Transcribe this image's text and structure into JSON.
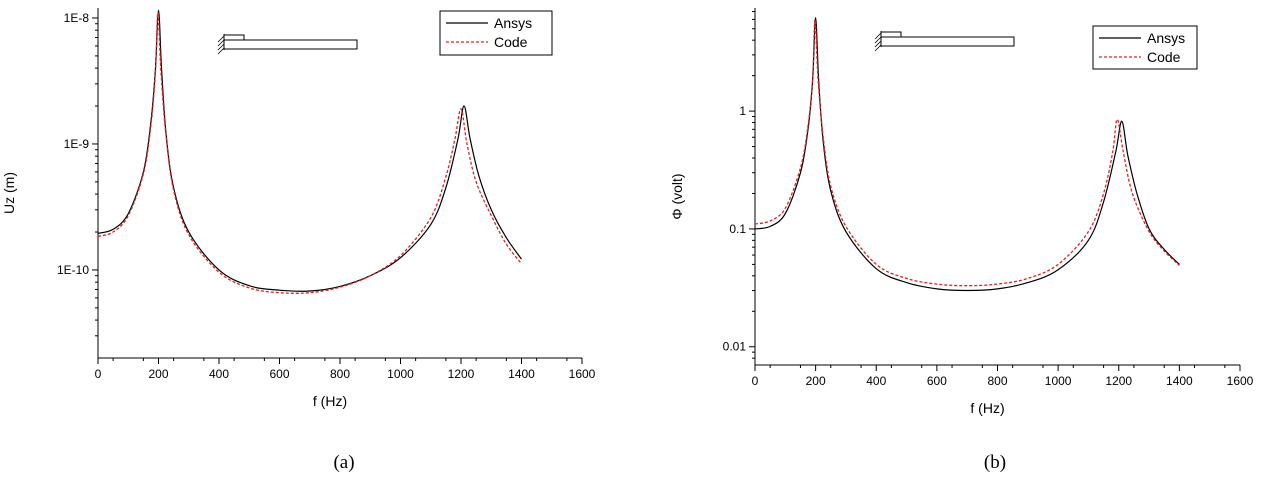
{
  "figure": {
    "caption_a": "(a)",
    "caption_b": "(b)"
  },
  "chart_data": [
    {
      "type": "line",
      "log_y": true,
      "xlabel": "f (Hz)",
      "ylabel": "Uz (m)",
      "xlim": [
        0,
        1600
      ],
      "ylim": [
        2e-11,
        1.2e-08
      ],
      "x_ticks": [
        0,
        200,
        400,
        600,
        800,
        1000,
        1200,
        1400,
        1600
      ],
      "x_tick_labels": [
        "0",
        "200",
        "400",
        "600",
        "800",
        "1000",
        "1200",
        "1400",
        "1600"
      ],
      "y_ticks": [
        1e-10,
        1e-09,
        1e-08
      ],
      "y_tick_labels": [
        "1E-10",
        "1E-9",
        "1E-8"
      ],
      "grid": false,
      "legend_position": "top-right",
      "inset": "cantilever-beam-sketch",
      "series": [
        {
          "name": "Ansys",
          "color": "#000000",
          "dash": "solid",
          "x": [
            0,
            50,
            100,
            150,
            175,
            190,
            200,
            210,
            225,
            250,
            300,
            400,
            500,
            600,
            700,
            800,
            900,
            1000,
            1100,
            1150,
            1190,
            1210,
            1230,
            1260,
            1300,
            1350,
            1400
          ],
          "y": [
            1.95e-10,
            2.1e-10,
            2.8e-10,
            6e-10,
            1.5e-09,
            4e-09,
            1.15e-08,
            4e-09,
            1.2e-09,
            4.5e-10,
            2e-10,
            1e-10,
            7.5e-11,
            6.9e-11,
            6.8e-11,
            7.4e-11,
            9e-11,
            1.25e-10,
            2.3e-10,
            4.5e-10,
            1.1e-09,
            2e-09,
            1.1e-09,
            5.5e-10,
            3e-10,
            1.8e-10,
            1.22e-10
          ]
        },
        {
          "name": "Code",
          "color": "#e02020",
          "dash": "dashed",
          "x": [
            0,
            50,
            100,
            150,
            175,
            190,
            198,
            208,
            225,
            250,
            300,
            400,
            500,
            600,
            700,
            800,
            900,
            1000,
            1100,
            1150,
            1180,
            1200,
            1220,
            1250,
            1300,
            1350,
            1400
          ],
          "y": [
            1.85e-10,
            2e-10,
            2.7e-10,
            5.8e-10,
            1.4e-09,
            3.8e-09,
            1.1e-08,
            3.8e-09,
            1.15e-09,
            4.3e-10,
            1.9e-10,
            9.6e-11,
            7.2e-11,
            6.6e-11,
            6.6e-11,
            7.3e-11,
            9e-11,
            1.3e-10,
            2.6e-10,
            5.5e-10,
            1.1e-09,
            1.9e-09,
            1e-09,
            5e-10,
            2.7e-10,
            1.6e-10,
            1.12e-10
          ]
        }
      ]
    },
    {
      "type": "line",
      "log_y": true,
      "xlabel": "f (Hz)",
      "ylabel": "Φ (volt)",
      "xlim": [
        0,
        1600
      ],
      "ylim": [
        0.007,
        7.5
      ],
      "x_ticks": [
        0,
        200,
        400,
        600,
        800,
        1000,
        1200,
        1400,
        1600
      ],
      "x_tick_labels": [
        "0",
        "200",
        "400",
        "600",
        "800",
        "1000",
        "1200",
        "1400",
        "1600"
      ],
      "y_ticks": [
        0.01,
        0.1,
        1
      ],
      "y_tick_labels": [
        "0.01",
        "0.1",
        "1"
      ],
      "grid": false,
      "legend_position": "top-right",
      "inset": "cantilever-beam-sketch",
      "series": [
        {
          "name": "Ansys",
          "color": "#000000",
          "dash": "solid",
          "x": [
            0,
            50,
            100,
            150,
            175,
            190,
            200,
            210,
            225,
            250,
            300,
            400,
            500,
            600,
            700,
            800,
            900,
            1000,
            1100,
            1150,
            1190,
            1210,
            1230,
            1260,
            1300,
            1350,
            1400
          ],
          "y": [
            0.1,
            0.105,
            0.135,
            0.3,
            0.7,
            1.8,
            6.2,
            1.8,
            0.55,
            0.21,
            0.095,
            0.046,
            0.035,
            0.031,
            0.03,
            0.031,
            0.035,
            0.045,
            0.08,
            0.17,
            0.45,
            0.82,
            0.42,
            0.2,
            0.1,
            0.067,
            0.05
          ]
        },
        {
          "name": "Code",
          "color": "#e02020",
          "dash": "dashed",
          "x": [
            0,
            50,
            100,
            150,
            175,
            190,
            198,
            208,
            225,
            250,
            300,
            400,
            500,
            600,
            700,
            800,
            900,
            1000,
            1100,
            1150,
            1180,
            1195,
            1215,
            1245,
            1300,
            1350,
            1400
          ],
          "y": [
            0.11,
            0.117,
            0.15,
            0.33,
            0.75,
            1.9,
            6.0,
            1.9,
            0.6,
            0.23,
            0.105,
            0.05,
            0.038,
            0.034,
            0.033,
            0.034,
            0.038,
            0.05,
            0.095,
            0.2,
            0.45,
            0.85,
            0.45,
            0.2,
            0.095,
            0.065,
            0.049
          ]
        }
      ]
    }
  ]
}
